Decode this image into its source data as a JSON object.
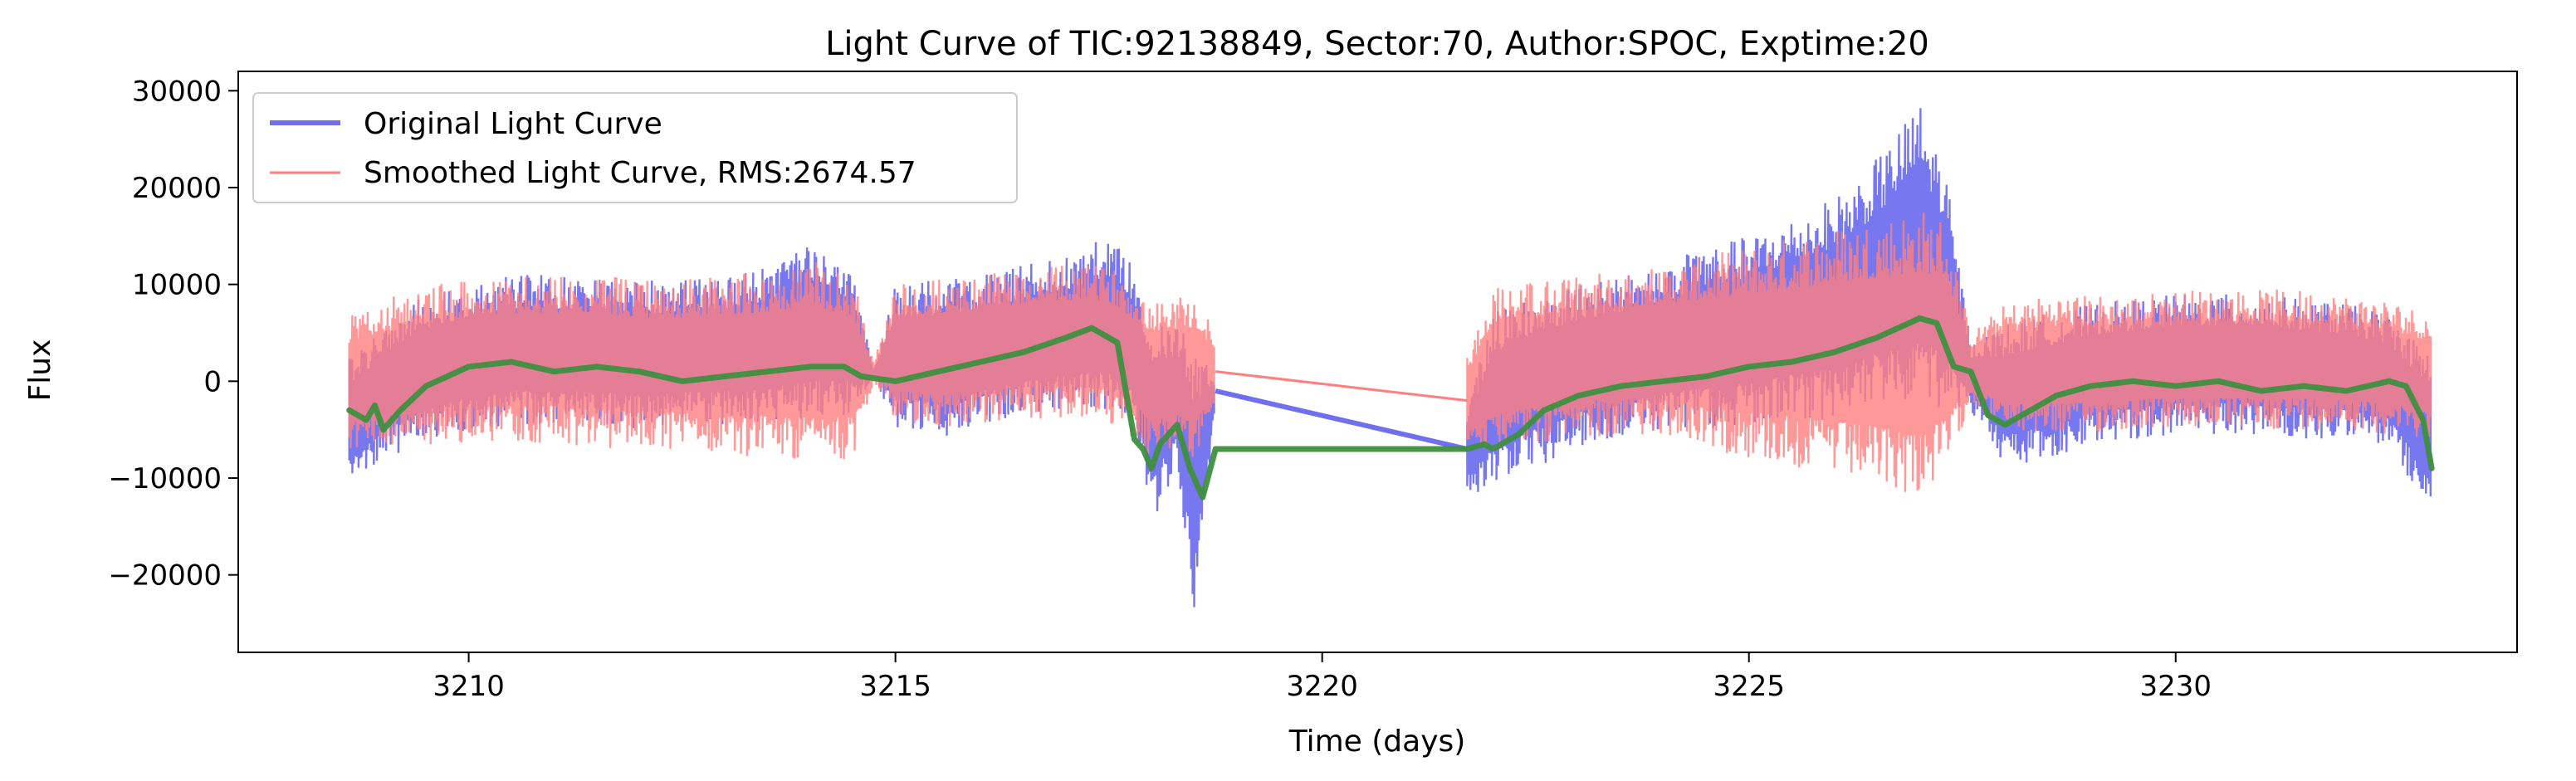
{
  "chart_data": {
    "type": "line",
    "title": "Light Curve of TIC:92138849, Sector:70, Author:SPOC, Exptime:20",
    "xlabel": "Time (days)",
    "ylabel": "Flux",
    "xlim": [
      3207.3,
      3234.0
    ],
    "ylim": [
      -28000,
      32000
    ],
    "x_ticks": [
      3210,
      3215,
      3220,
      3225,
      3230
    ],
    "x_tick_labels": [
      "3210",
      "3215",
      "3220",
      "3225",
      "3230"
    ],
    "y_ticks": [
      -20000,
      -10000,
      0,
      10000,
      20000,
      30000
    ],
    "y_tick_labels": [
      "−20000",
      "−10000",
      "0",
      "10000",
      "20000",
      "30000"
    ],
    "grid": false,
    "legend_position": "top-left",
    "series": [
      {
        "name": "Original Light Curve",
        "color": "#7070ee",
        "style": "band",
        "x": [
          3208.6,
          3208.8,
          3209.0,
          3209.5,
          3210.0,
          3210.5,
          3211.0,
          3211.5,
          3212.0,
          3212.5,
          3213.0,
          3213.5,
          3214.0,
          3214.5,
          3214.75,
          3215.0,
          3215.5,
          3216.0,
          3216.5,
          3217.0,
          3217.5,
          3217.8,
          3218.0,
          3218.3,
          3218.5,
          3218.75,
          3221.7,
          3222.0,
          3222.5,
          3223.0,
          3223.5,
          3224.0,
          3224.5,
          3225.0,
          3225.5,
          3226.0,
          3226.5,
          3227.0,
          3227.3,
          3227.6,
          3228.0,
          3228.5,
          3229.0,
          3229.5,
          3230.0,
          3230.5,
          3231.0,
          3231.5,
          3232.0,
          3232.5,
          3233.0
        ],
        "upper": [
          3000,
          4000,
          6000,
          9000,
          10000,
          11000,
          11000,
          11000,
          10500,
          10500,
          11000,
          12000,
          14000,
          12000,
          1000,
          10000,
          10500,
          11000,
          12000,
          13000,
          15000,
          12000,
          7000,
          6000,
          4000,
          0,
          -2000,
          7000,
          9000,
          10000,
          11000,
          12000,
          14000,
          15000,
          17000,
          19000,
          23000,
          29000,
          22000,
          4000,
          6000,
          7000,
          8000,
          8500,
          9000,
          9000,
          9000,
          8500,
          8000,
          7000,
          3000
        ],
        "lower": [
          -11000,
          -9500,
          -8000,
          -6500,
          -5000,
          -4500,
          -4500,
          -4500,
          -5000,
          -4500,
          -4500,
          -4500,
          -4000,
          -3500,
          500,
          -5000,
          -6000,
          -4500,
          -3500,
          -3000,
          -3000,
          -5000,
          -15000,
          -9000,
          -25000,
          -2000,
          -12000,
          -11000,
          -9000,
          -7000,
          -6000,
          -5000,
          -5000,
          -4500,
          -4000,
          -4000,
          -3000,
          -2000,
          -3000,
          -3000,
          -9000,
          -8000,
          -6500,
          -6000,
          -5500,
          -5500,
          -5500,
          -6000,
          -6000,
          -7000,
          -14000
        ]
      },
      {
        "name": "Smoothed Light Curve, RMS:2674.57",
        "color": "#ff7f7f",
        "style": "band",
        "x": [
          3208.6,
          3208.8,
          3209.0,
          3209.5,
          3210.0,
          3210.5,
          3211.0,
          3211.5,
          3212.0,
          3212.5,
          3213.0,
          3213.5,
          3214.0,
          3214.5,
          3214.75,
          3215.0,
          3215.5,
          3216.0,
          3216.5,
          3217.0,
          3217.5,
          3217.8,
          3218.0,
          3218.3,
          3218.5,
          3218.75,
          3221.7,
          3222.0,
          3222.5,
          3223.0,
          3223.5,
          3224.0,
          3224.5,
          3225.0,
          3225.5,
          3226.0,
          3226.5,
          3227.0,
          3227.3,
          3227.6,
          3228.0,
          3228.5,
          3229.0,
          3229.5,
          3230.0,
          3230.5,
          3231.0,
          3231.5,
          3232.0,
          3232.5,
          3233.0
        ],
        "upper": [
          7000,
          7500,
          8500,
          10000,
          10500,
          11000,
          11000,
          11000,
          10500,
          10500,
          11000,
          11500,
          12500,
          11000,
          2000,
          10000,
          10500,
          11000,
          11500,
          12000,
          12000,
          10000,
          9000,
          9000,
          9500,
          5000,
          3000,
          10000,
          10500,
          11000,
          11500,
          12000,
          13000,
          14000,
          15000,
          16000,
          17000,
          18000,
          17000,
          5000,
          8000,
          9000,
          9000,
          9000,
          9500,
          9500,
          9500,
          9500,
          9000,
          8500,
          7000
        ],
        "lower": [
          -7000,
          -7000,
          -7000,
          -7000,
          -6500,
          -6500,
          -6500,
          -7000,
          -7000,
          -7000,
          -7500,
          -8000,
          -8500,
          -8000,
          0,
          -4000,
          -5000,
          -4500,
          -4000,
          -4000,
          -4500,
          -6000,
          -8000,
          -7000,
          -8000,
          -3000,
          -7000,
          -7500,
          -6500,
          -6000,
          -5500,
          -6000,
          -7000,
          -8000,
          -9000,
          -10000,
          -11000,
          -12000,
          -10000,
          -2000,
          -5500,
          -5500,
          -5500,
          -5000,
          -5000,
          -5000,
          -5000,
          -5000,
          -5000,
          -5500,
          -6000
        ]
      },
      {
        "name": "",
        "color": "#3f8f3f",
        "style": "line",
        "x": [
          3208.6,
          3208.8,
          3208.9,
          3209.0,
          3209.2,
          3209.5,
          3210.0,
          3210.5,
          3211.0,
          3211.5,
          3212.0,
          3212.5,
          3213.0,
          3213.5,
          3214.0,
          3214.4,
          3214.6,
          3215.0,
          3215.5,
          3216.0,
          3216.5,
          3217.0,
          3217.3,
          3217.6,
          3217.8,
          3217.9,
          3218.0,
          3218.1,
          3218.3,
          3218.45,
          3218.6,
          3218.75,
          3221.7,
          3221.9,
          3222.0,
          3222.3,
          3222.6,
          3223.0,
          3223.5,
          3224.0,
          3224.5,
          3225.0,
          3225.5,
          3226.0,
          3226.5,
          3227.0,
          3227.2,
          3227.4,
          3227.6,
          3227.8,
          3228.0,
          3228.3,
          3228.6,
          3229.0,
          3229.5,
          3230.0,
          3230.5,
          3231.0,
          3231.5,
          3232.0,
          3232.5,
          3232.7,
          3232.9,
          3233.0
        ],
        "y": [
          -3000,
          -4000,
          -2500,
          -5000,
          -3000,
          -500,
          1500,
          2000,
          1000,
          1500,
          1000,
          0,
          500,
          1000,
          1500,
          1500,
          500,
          0,
          1000,
          2000,
          3000,
          4500,
          5500,
          4000,
          -6000,
          -7000,
          -9000,
          -6500,
          -4500,
          -9000,
          -12000,
          -7000,
          -7000,
          -6500,
          -7000,
          -5500,
          -3000,
          -1500,
          -500,
          0,
          500,
          1500,
          2000,
          3000,
          4500,
          6500,
          6000,
          1500,
          1000,
          -3500,
          -4500,
          -3000,
          -1500,
          -500,
          0,
          -500,
          0,
          -1000,
          -500,
          -1000,
          0,
          -500,
          -4000,
          -9000
        ]
      }
    ]
  }
}
